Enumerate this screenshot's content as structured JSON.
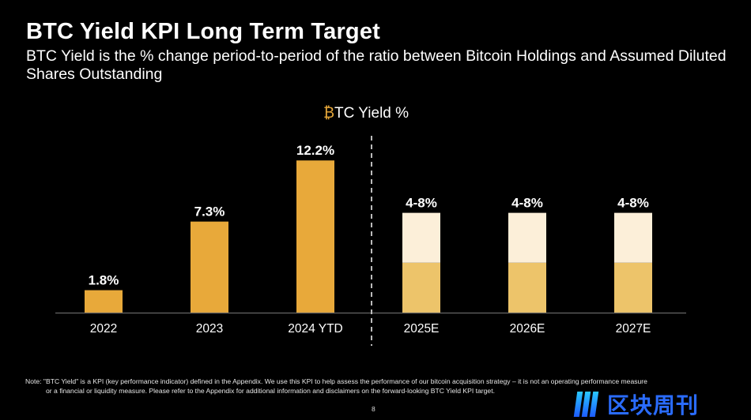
{
  "header": {
    "title": "BTC Yield KPI Long Term Target",
    "subtitle": "BTC Yield is the % change period-to-period of the ratio between Bitcoin Holdings and Assumed Diluted Shares Outstanding"
  },
  "chart_data": {
    "type": "bar",
    "title_prefix": "₿",
    "title_rest": "TC Yield %",
    "categories": [
      "2022",
      "2023",
      "2024 YTD",
      "2025E",
      "2026E",
      "2027E"
    ],
    "actual_values": [
      1.8,
      7.3,
      12.2,
      null,
      null,
      null
    ],
    "estimate_ranges": [
      null,
      null,
      null,
      [
        4,
        8
      ],
      [
        4,
        8
      ],
      [
        4,
        8
      ]
    ],
    "data_labels": [
      "1.8%",
      "7.3%",
      "12.2%",
      "4-8%",
      "4-8%",
      "4-8%"
    ],
    "ylim": [
      0,
      13
    ],
    "grid": false,
    "divider": "dashed line between actual and estimated years",
    "colors": {
      "actual": "#E8A93A",
      "estimate_low": "#EDC46A",
      "estimate_high": "#FCEFD9",
      "btc_symbol": "#E8A93A"
    }
  },
  "footer": {
    "note_line1": "Note: \"BTC Yield\" is a KPI (key performance indicator) defined in the Appendix.  We use this KPI to help assess the performance of our bitcoin acquisition strategy – it is not an operating performance measure",
    "note_line2": "or a financial or liquidity measure. Please refer to the Appendix for additional information and disclaimers on the forward-looking BTC Yield KPI target.",
    "page_number": "8",
    "watermark": "区块周刊"
  }
}
